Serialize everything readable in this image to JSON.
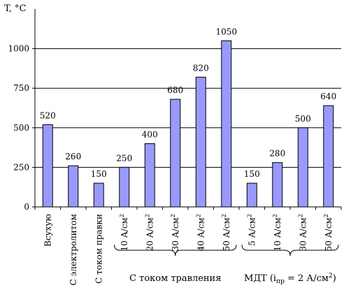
{
  "chart_data": {
    "type": "bar",
    "ylabel": "T, °C",
    "xlabel": "",
    "ylim": [
      0,
      1250
    ],
    "yticks": [
      0,
      250,
      500,
      750,
      1000
    ],
    "grid": true,
    "categories": [
      {
        "label": "Всухую",
        "sub": "",
        "value": 520,
        "value_label": "520"
      },
      {
        "label": "С электролитом",
        "sub": "",
        "value": 260,
        "value_label": "260"
      },
      {
        "label": "С током правки",
        "sub": "",
        "value": 150,
        "value_label": "150"
      },
      {
        "label": "10 А/см",
        "sub": "2",
        "value": 250,
        "value_label": "250"
      },
      {
        "label": "20 А/см",
        "sub": "2",
        "value": 400,
        "value_label": "400"
      },
      {
        "label": "30 А/см",
        "sub": "2",
        "value": 680,
        "value_label": "680"
      },
      {
        "label": "40 А/см",
        "sub": "2",
        "value": 820,
        "value_label": "820"
      },
      {
        "label": "50 А/см",
        "sub": "2",
        "value": 1050,
        "value_label": "1050"
      },
      {
        "label": "5 А/см",
        "sub": "2",
        "value": 150,
        "value_label": "150"
      },
      {
        "label": "10 А/см",
        "sub": "2",
        "value": 280,
        "value_label": "280"
      },
      {
        "label": "30 А/см",
        "sub": "2",
        "value": 500,
        "value_label": "500"
      },
      {
        "label": "50 А/см",
        "sub": "2",
        "value": 640,
        "value_label": "640"
      }
    ],
    "groups": [
      {
        "label": "С током травления",
        "from": 3,
        "to": 7
      },
      {
        "label_parts": [
          "МДТ (i",
          "пр",
          " = 2 А/см",
          "2",
          ")"
        ],
        "from": 8,
        "to": 11
      }
    ],
    "colors": {
      "bar_fill": "#9999ff",
      "bar_stroke": "#000000",
      "grid": "#000000"
    }
  }
}
